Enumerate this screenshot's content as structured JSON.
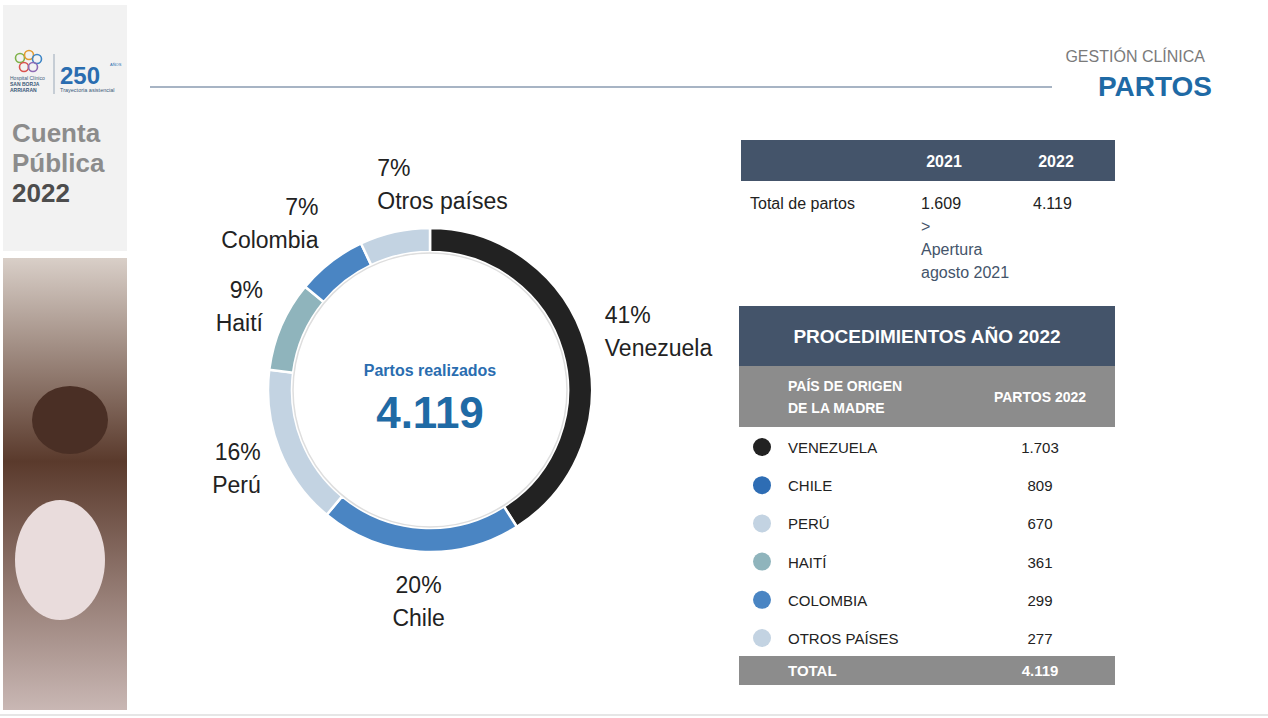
{
  "header": {
    "logo": {
      "hospital": [
        "Hospital Clínico",
        "SAN BORJA",
        "ARRIARAN"
      ],
      "number": "250",
      "years": "AÑOS",
      "tagline": "Trayectoria asistencial"
    },
    "panel_title": [
      "Cuenta",
      "Pública",
      "2022"
    ],
    "section": "GESTIÓN CLÍNICA",
    "title": "PARTOS"
  },
  "chart_data": {
    "type": "donut",
    "title": "Partos realizados",
    "annotations": [
      "4.119"
    ],
    "categories": [
      "Venezuela",
      "Chile",
      "Perú",
      "Haití",
      "Colombia",
      "Otros países"
    ],
    "values": [
      41,
      20,
      16,
      9,
      7,
      7
    ],
    "value_labels": [
      "41%",
      "20%",
      "16%",
      "9%",
      "7%",
      "7%"
    ],
    "colors": [
      "#222222",
      "#4a85c3",
      "#c3d3e2",
      "#8fb4bc",
      "#4a85c3",
      "#c3d3e2"
    ],
    "data_labels": true
  },
  "summary_table": {
    "columns": [
      "2021",
      "2022"
    ],
    "rows": [
      {
        "label": "Total de partos",
        "values": [
          "1.609",
          "4.119"
        ],
        "note": [
          ">",
          "Apertura",
          "agosto 2021"
        ]
      }
    ]
  },
  "procedures_table": {
    "title": "PROCEDIMIENTOS AÑO 2022",
    "columns": [
      "PAÍS DE ORIGEN DE LA MADRE",
      "PARTOS 2022"
    ],
    "rows": [
      {
        "country": "VENEZUELA",
        "color": "#222222",
        "partos": "1.703"
      },
      {
        "country": "CHILE",
        "color": "#2e6db4",
        "partos": "809"
      },
      {
        "country": "PERÚ",
        "color": "#c3d3e2",
        "partos": "670"
      },
      {
        "country": "HAITÍ",
        "color": "#8fb4bc",
        "partos": "361"
      },
      {
        "country": "COLOMBIA",
        "color": "#4a85c3",
        "partos": "299"
      },
      {
        "country": "OTROS PAÍSES",
        "color": "#c3d3e2",
        "partos": "277"
      }
    ],
    "total": {
      "label": "TOTAL",
      "partos": "4.119"
    }
  }
}
